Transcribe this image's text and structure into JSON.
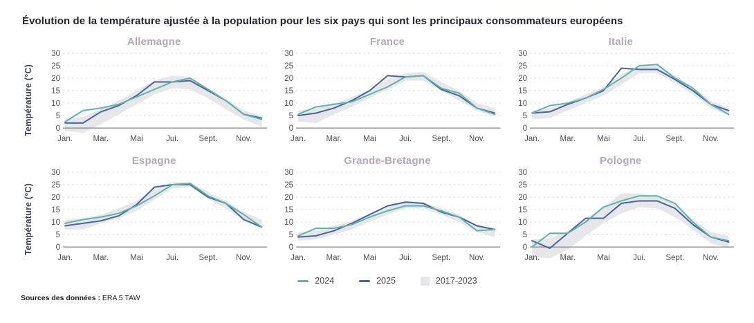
{
  "title": "Évolution de la température ajustée à la population pour les six pays qui sont les principaux consommateurs européens",
  "ylabel": "Température (°C)",
  "source": {
    "label": "Sources des données :",
    "value": "ERA 5 TAW"
  },
  "colors": {
    "series_2024": "#5fb3ac",
    "series_2025": "#4366a0",
    "band": "#e7e7e9",
    "grid": "#d9d9dd",
    "axis": "#83838d",
    "tick_text": "#4f4f58",
    "subplot_title": "#b3a9b5"
  },
  "legend": [
    {
      "label": "2024",
      "type": "line",
      "color": "#5fb3ac"
    },
    {
      "label": "2025",
      "type": "line",
      "color": "#4366a0"
    },
    {
      "label": "2017-2023",
      "type": "band",
      "color": "#e7e7e9"
    }
  ],
  "chart_data": [
    {
      "type": "line",
      "title": "Allemagne",
      "x_tick_labels": [
        "Jan.",
        "Mar.",
        "Mai",
        "Jui.",
        "Sept.",
        "Nov."
      ],
      "x_tick_positions": [
        0,
        2,
        4,
        6,
        8,
        10
      ],
      "ylim": [
        0,
        30
      ],
      "yticks": [
        0,
        5,
        10,
        15,
        20,
        25,
        30
      ],
      "series": [
        {
          "name": "2024",
          "color": "#5fb3ac",
          "values": [
            2.5,
            7,
            8,
            9.5,
            12.5,
            15.5,
            18.5,
            20,
            15.5,
            11,
            5.5,
            3.5
          ]
        },
        {
          "name": "2025",
          "color": "#4366a0",
          "values": [
            2,
            2,
            6.5,
            9,
            13,
            18.5,
            18.5,
            19,
            15,
            11,
            5.5,
            4
          ]
        }
      ],
      "band": {
        "name": "2017-2023",
        "low": [
          -1,
          -2,
          1.5,
          5.5,
          9.5,
          13.5,
          16,
          15.5,
          12,
          7.5,
          3.5,
          0.5
        ],
        "high": [
          4,
          4.5,
          7.5,
          11,
          15,
          19,
          21,
          20.5,
          16,
          11.5,
          7,
          5
        ]
      }
    },
    {
      "type": "line",
      "title": "France",
      "x_tick_labels": [
        "Jan.",
        "Mar.",
        "Mai",
        "Jui.",
        "Sept.",
        "Nov."
      ],
      "x_tick_positions": [
        0,
        2,
        4,
        6,
        8,
        10
      ],
      "ylim": [
        0,
        30
      ],
      "yticks": [
        0,
        5,
        10,
        15,
        20,
        25,
        30
      ],
      "series": [
        {
          "name": "2024",
          "color": "#5fb3ac",
          "values": [
            5.5,
            8.5,
            9.5,
            10.5,
            13.5,
            16.5,
            20.5,
            21,
            16,
            14,
            8,
            5.5
          ]
        },
        {
          "name": "2025",
          "color": "#4366a0",
          "values": [
            5,
            6,
            8,
            11,
            15,
            21,
            20.5,
            21,
            15.5,
            13,
            8,
            6
          ]
        }
      ],
      "band": {
        "name": "2017-2023",
        "low": [
          2.5,
          2,
          5.5,
          8.5,
          12,
          15.5,
          19,
          19,
          15,
          11,
          7,
          4.5
        ],
        "high": [
          7,
          8,
          10,
          12.5,
          15.5,
          19.5,
          22,
          22.5,
          18.5,
          15,
          10,
          8
        ]
      }
    },
    {
      "type": "line",
      "title": "Italie",
      "x_tick_labels": [
        "Jan.",
        "Mar.",
        "Mai",
        "Jui.",
        "Sept.",
        "Nov."
      ],
      "x_tick_positions": [
        0,
        2,
        4,
        6,
        8,
        10
      ],
      "ylim": [
        0,
        30
      ],
      "yticks": [
        0,
        5,
        10,
        15,
        20,
        25,
        30
      ],
      "series": [
        {
          "name": "2024",
          "color": "#5fb3ac",
          "values": [
            6,
            9,
            10,
            12,
            15.5,
            20,
            25,
            25.5,
            20,
            16,
            9.5,
            5.5
          ]
        },
        {
          "name": "2025",
          "color": "#4366a0",
          "values": [
            6,
            6.5,
            9.5,
            12,
            15,
            24,
            23.5,
            23.5,
            19.5,
            15,
            9.5,
            7
          ]
        }
      ],
      "band": {
        "name": "2017-2023",
        "low": [
          3.5,
          4,
          7,
          10,
          13,
          17.5,
          22,
          22,
          18,
          13.5,
          8,
          5
        ],
        "high": [
          7,
          8,
          10.5,
          13.5,
          16.5,
          21.5,
          25,
          25,
          21,
          16.5,
          11,
          8
        ]
      }
    },
    {
      "type": "line",
      "title": "Espagne",
      "x_tick_labels": [
        "Jan.",
        "Mar.",
        "Mai",
        "Jui.",
        "Sept.",
        "Nov."
      ],
      "x_tick_positions": [
        0,
        2,
        4,
        6,
        8,
        10
      ],
      "ylim": [
        0,
        30
      ],
      "yticks": [
        0,
        5,
        10,
        15,
        20,
        25,
        30
      ],
      "series": [
        {
          "name": "2024",
          "color": "#5fb3ac",
          "values": [
            9.5,
            11,
            12,
            13.5,
            16.5,
            20.5,
            25,
            25.5,
            20.5,
            17.5,
            13,
            8
          ]
        },
        {
          "name": "2025",
          "color": "#4366a0",
          "values": [
            8.5,
            9.5,
            10.5,
            12.5,
            17,
            24,
            25,
            25,
            20,
            17.5,
            11,
            8
          ]
        }
      ],
      "band": {
        "name": "2017-2023",
        "low": [
          7,
          7,
          9.5,
          11.5,
          14.5,
          19,
          23.5,
          24,
          19.5,
          15.5,
          10.5,
          7.5
        ],
        "high": [
          11,
          11.5,
          13,
          15.5,
          18.5,
          23,
          26,
          26,
          22,
          18.5,
          14,
          11
        ]
      }
    },
    {
      "type": "line",
      "title": "Grande-Bretagne",
      "x_tick_labels": [
        "Jan.",
        "Mar.",
        "Mai",
        "Jui.",
        "Sept.",
        "Nov."
      ],
      "x_tick_positions": [
        0,
        2,
        4,
        6,
        8,
        10
      ],
      "ylim": [
        0,
        30
      ],
      "yticks": [
        0,
        5,
        10,
        15,
        20,
        25,
        30
      ],
      "series": [
        {
          "name": "2024",
          "color": "#5fb3ac",
          "values": [
            4.5,
            7.5,
            7.5,
            9,
            12,
            14.5,
            16.5,
            16.5,
            14.5,
            12,
            6.5,
            7
          ]
        },
        {
          "name": "2025",
          "color": "#4366a0",
          "values": [
            4,
            4.5,
            6.5,
            9.5,
            13,
            16.5,
            18,
            17.5,
            14,
            12,
            8.5,
            7
          ]
        }
      ],
      "band": {
        "name": "2017-2023",
        "low": [
          2.5,
          3,
          5,
          7,
          10,
          13,
          15.5,
          15.5,
          13,
          10,
          6,
          4
        ],
        "high": [
          6,
          6.5,
          8.5,
          10.5,
          13.5,
          16.5,
          18.5,
          18,
          15.5,
          13,
          9,
          7
        ]
      }
    },
    {
      "type": "line",
      "title": "Pologne",
      "x_tick_labels": [
        "Jan.",
        "Mar.",
        "Mai",
        "Jui.",
        "Sept.",
        "Nov."
      ],
      "x_tick_positions": [
        0,
        2,
        4,
        6,
        8,
        10
      ],
      "ylim": [
        0,
        30
      ],
      "yticks": [
        0,
        5,
        10,
        15,
        20,
        25,
        30
      ],
      "series": [
        {
          "name": "2024",
          "color": "#5fb3ac",
          "values": [
            0,
            5.5,
            5.5,
            10,
            16,
            18.5,
            20.5,
            20.5,
            17.5,
            10,
            4,
            2.5
          ]
        },
        {
          "name": "2025",
          "color": "#4366a0",
          "values": [
            2.5,
            -0.5,
            5.5,
            11.5,
            11.5,
            17.5,
            18.5,
            18.5,
            15.5,
            9,
            4,
            2
          ]
        }
      ],
      "band": {
        "name": "2017-2023",
        "low": [
          -4,
          -4.5,
          -1,
          4.5,
          9.5,
          13.5,
          16,
          15.5,
          12,
          7,
          1.5,
          -0.5
        ],
        "high": [
          3,
          3.5,
          6.5,
          11.5,
          16,
          21.5,
          21.5,
          20.5,
          17,
          11,
          6,
          4.5
        ]
      }
    }
  ]
}
